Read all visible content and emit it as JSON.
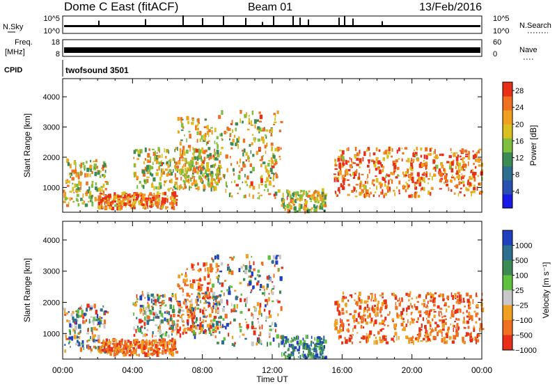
{
  "header": {
    "station": "Dome C East (fitACF)",
    "beam": "Beam 01",
    "date": "13/Feb/2016"
  },
  "strip_labels": {
    "nsky": "N.Sky",
    "nsky_top": "10^5",
    "nsky_bottom": "10^0",
    "nsearch": "N.Search",
    "nsearch_top": "10^5",
    "nsearch_bottom": "10^0",
    "freq_line1": "Freq.",
    "freq_line2": "[MHz]",
    "freq_top": "18",
    "freq_bottom": "8",
    "nave": "Nave",
    "nave_top": "60",
    "nave_bottom": "0",
    "cpid": "CPID",
    "cpid_value": "twofsound 3501"
  },
  "chart_data": [
    {
      "type": "heatmap",
      "title": "",
      "xlabel": "Time UT",
      "ylabel": "Slant Range [km]",
      "x_ticks": [
        "00:00",
        "04:00",
        "08:00",
        "12:00",
        "16:00",
        "20:00",
        "00:00"
      ],
      "y_ticks": [
        "1000",
        "2000",
        "3000",
        "4000"
      ],
      "xlim_hours": [
        0,
        24
      ],
      "ylim_km": [
        180,
        4600
      ],
      "colorbar": {
        "label": "Power [dB]",
        "ticks": [
          "4",
          "8",
          "12",
          "16",
          "20",
          "24",
          "28"
        ],
        "range": [
          0,
          30
        ],
        "colors": [
          "#1a1ae6",
          "#2a4fb0",
          "#2e6e8e",
          "#3d8a55",
          "#7fbf3f",
          "#d8c020",
          "#f0a020",
          "#ee7020",
          "#e83018"
        ]
      },
      "echo_regions": [
        {
          "t_start": 0.0,
          "t_end": 2.5,
          "range_min": 400,
          "range_max": 1900,
          "level": "medium"
        },
        {
          "t_start": 2.0,
          "t_end": 6.5,
          "range_min": 300,
          "range_max": 800,
          "level": "high"
        },
        {
          "t_start": 4.0,
          "t_end": 9.0,
          "range_min": 900,
          "range_max": 2300,
          "level": "medium"
        },
        {
          "t_start": 6.5,
          "t_end": 8.5,
          "range_min": 1000,
          "range_max": 3300,
          "level": "medium"
        },
        {
          "t_start": 8.5,
          "t_end": 12.5,
          "range_min": 600,
          "range_max": 3500,
          "level": "medium"
        },
        {
          "t_start": 12.5,
          "t_end": 15.0,
          "range_min": 200,
          "range_max": 900,
          "level": "medium"
        },
        {
          "t_start": 15.5,
          "t_end": 24.0,
          "range_min": 700,
          "range_max": 2300,
          "level": "high"
        }
      ]
    },
    {
      "type": "heatmap",
      "title": "",
      "xlabel": "Time UT",
      "ylabel": "Slant Range [km]",
      "x_ticks": [
        "00:00",
        "04:00",
        "08:00",
        "12:00",
        "16:00",
        "20:00",
        "00:00"
      ],
      "y_ticks": [
        "1000",
        "2000",
        "3000",
        "4000"
      ],
      "xlim_hours": [
        0,
        24
      ],
      "ylim_km": [
        180,
        4600
      ],
      "colorbar": {
        "label": "Velocity [m s⁻¹]",
        "ticks": [
          "1000",
          "500",
          "100",
          "25",
          "-25",
          "-100",
          "-500",
          "-1000"
        ],
        "colors": [
          "#2040c0",
          "#2e6e8e",
          "#3d8a55",
          "#60c040",
          "#c8c8c8",
          "#f0a020",
          "#ee7020",
          "#e83018"
        ]
      },
      "echo_regions": [
        {
          "t_start": 0.0,
          "t_end": 2.5,
          "range_min": 400,
          "range_max": 1900,
          "velocity": "mixed"
        },
        {
          "t_start": 2.0,
          "t_end": 6.5,
          "range_min": 300,
          "range_max": 800,
          "velocity": "negative"
        },
        {
          "t_start": 4.0,
          "t_end": 9.0,
          "range_min": 900,
          "range_max": 2300,
          "velocity": "mixed"
        },
        {
          "t_start": 6.5,
          "t_end": 8.5,
          "range_min": 1000,
          "range_max": 3300,
          "velocity": "negative"
        },
        {
          "t_start": 8.5,
          "t_end": 12.5,
          "range_min": 600,
          "range_max": 3500,
          "velocity": "mixed"
        },
        {
          "t_start": 12.5,
          "t_end": 15.0,
          "range_min": 200,
          "range_max": 900,
          "velocity": "positive"
        },
        {
          "t_start": 15.5,
          "t_end": 24.0,
          "range_min": 700,
          "range_max": 2300,
          "velocity": "negative"
        }
      ]
    }
  ]
}
